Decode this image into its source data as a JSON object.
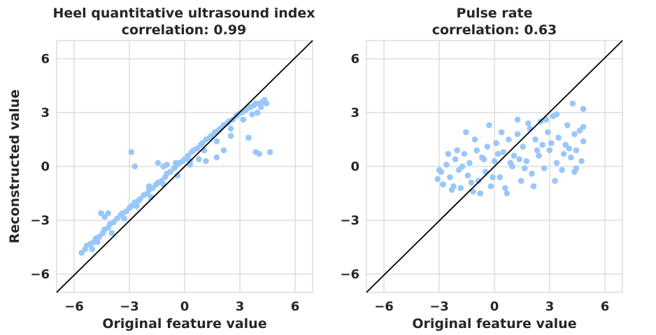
{
  "figure": {
    "ylabel": "Reconstructed value",
    "point_color": "#99c7fa",
    "identity_line_color": "#000000"
  },
  "chart_data": [
    {
      "type": "scatter",
      "title": "Heel quantitative ultrasound index",
      "subtitle": "correlation: 0.99",
      "xlabel": "Original feature value",
      "ylabel": "Reconstructed value",
      "xlim": [
        -7.2,
        7.2
      ],
      "ylim": [
        -7,
        7
      ],
      "xticks": [
        -6,
        -3,
        0,
        3,
        6
      ],
      "yticks": [
        6,
        3,
        0,
        -3,
        -6
      ],
      "xtick_labels": [
        "−6",
        "−3",
        "0",
        "3",
        "6"
      ],
      "ytick_labels": [
        "6",
        "3",
        "0",
        "−3",
        "−6"
      ],
      "grid": true,
      "reference_line": "y = x",
      "points": [
        [
          -5.8,
          -4.8
        ],
        [
          -5.6,
          -4.6
        ],
        [
          -5.5,
          -4.4
        ],
        [
          -5.3,
          -4.3
        ],
        [
          -5.1,
          -4.2
        ],
        [
          -5.0,
          -4.0
        ],
        [
          -4.8,
          -3.9
        ],
        [
          -4.6,
          -3.7
        ],
        [
          -4.5,
          -3.5
        ],
        [
          -4.3,
          -3.4
        ],
        [
          -4.2,
          -3.2
        ],
        [
          -4.0,
          -3.1
        ],
        [
          -3.8,
          -2.9
        ],
        [
          -3.6,
          -2.7
        ],
        [
          -3.5,
          -2.6
        ],
        [
          -3.3,
          -2.5
        ],
        [
          -3.1,
          -2.3
        ],
        [
          -3.0,
          -2.2
        ],
        [
          -2.8,
          -2.0
        ],
        [
          -2.6,
          -1.9
        ],
        [
          -2.5,
          -1.8
        ],
        [
          -2.3,
          -1.6
        ],
        [
          -2.1,
          -1.5
        ],
        [
          -2.0,
          -1.3
        ],
        [
          -1.8,
          -1.2
        ],
        [
          -1.6,
          -1.0
        ],
        [
          -1.5,
          -0.9
        ],
        [
          -1.3,
          -0.8
        ],
        [
          -1.1,
          -0.6
        ],
        [
          -1.0,
          -0.4
        ],
        [
          -0.8,
          -0.3
        ],
        [
          -0.6,
          -0.1
        ],
        [
          -0.5,
          0.0
        ],
        [
          -0.3,
          0.2
        ],
        [
          -0.1,
          0.3
        ],
        [
          0.0,
          0.4
        ],
        [
          0.2,
          0.6
        ],
        [
          0.4,
          0.8
        ],
        [
          0.5,
          0.9
        ],
        [
          0.7,
          1.0
        ],
        [
          0.9,
          1.2
        ],
        [
          1.0,
          1.3
        ],
        [
          1.2,
          1.5
        ],
        [
          1.4,
          1.6
        ],
        [
          1.5,
          1.7
        ],
        [
          1.7,
          1.9
        ],
        [
          1.9,
          2.0
        ],
        [
          2.0,
          2.1
        ],
        [
          2.2,
          2.3
        ],
        [
          2.4,
          2.4
        ],
        [
          2.5,
          2.5
        ],
        [
          2.7,
          2.6
        ],
        [
          2.9,
          2.8
        ],
        [
          3.0,
          2.9
        ],
        [
          3.2,
          3.0
        ],
        [
          3.4,
          3.1
        ],
        [
          3.5,
          3.2
        ],
        [
          3.7,
          3.3
        ],
        [
          3.9,
          3.4
        ],
        [
          4.0,
          3.5
        ],
        [
          4.2,
          3.5
        ],
        [
          4.4,
          3.6
        ],
        [
          4.5,
          3.7
        ],
        [
          4.6,
          3.5
        ],
        [
          4.3,
          3.3
        ],
        [
          -4.7,
          -2.6
        ],
        [
          -4.5,
          -2.8
        ],
        [
          -4.3,
          -2.6
        ],
        [
          -3.0,
          0.8
        ],
        [
          -2.8,
          0.0
        ],
        [
          -2.0,
          -1.1
        ],
        [
          -1.5,
          0.2
        ],
        [
          -1.2,
          0.0
        ],
        [
          -1.0,
          0.1
        ],
        [
          -0.5,
          0.2
        ],
        [
          0.3,
          0.1
        ],
        [
          0.8,
          0.4
        ],
        [
          1.2,
          0.3
        ],
        [
          1.8,
          0.5
        ],
        [
          2.2,
          0.9
        ],
        [
          2.6,
          1.7
        ],
        [
          3.6,
          1.6
        ],
        [
          4.0,
          0.8
        ],
        [
          4.2,
          0.7
        ],
        [
          4.8,
          0.8
        ],
        [
          -5.2,
          -4.6
        ],
        [
          -4.9,
          -4.2
        ],
        [
          -4.1,
          -3.7
        ],
        [
          -3.4,
          -2.9
        ],
        [
          -2.7,
          -2.2
        ],
        [
          -1.9,
          -1.7
        ],
        [
          -1.2,
          -1.0
        ],
        [
          -0.4,
          -0.5
        ],
        [
          0.3,
          0.3
        ],
        [
          1.1,
          0.9
        ],
        [
          1.8,
          1.4
        ],
        [
          2.6,
          2.1
        ],
        [
          3.3,
          2.6
        ],
        [
          3.8,
          2.9
        ],
        [
          4.1,
          3.0
        ]
      ]
    },
    {
      "type": "scatter",
      "title": "Pulse rate",
      "subtitle": "correlation: 0.63",
      "xlabel": "Original feature value",
      "ylabel": "",
      "xlim": [
        -7.2,
        7.2
      ],
      "ylim": [
        -7,
        7
      ],
      "xticks": [
        -6,
        -3,
        0,
        3,
        6
      ],
      "yticks": [
        6,
        3,
        0,
        -3,
        -6
      ],
      "xtick_labels": [
        "−6",
        "−3",
        "0",
        "3",
        "6"
      ],
      "ytick_labels": [
        "6",
        "3",
        "0",
        "−3",
        "−6"
      ],
      "grid": true,
      "reference_line": "y = x",
      "points": [
        [
          -3.2,
          -0.7
        ],
        [
          -3.0,
          -0.3
        ],
        [
          -2.9,
          -1.0
        ],
        [
          -2.7,
          0.1
        ],
        [
          -2.5,
          -0.6
        ],
        [
          -2.4,
          -1.3
        ],
        [
          -2.2,
          0.4
        ],
        [
          -2.0,
          -0.2
        ],
        [
          -1.9,
          -1.2
        ],
        [
          -1.7,
          0.7
        ],
        [
          -1.5,
          -0.5
        ],
        [
          -1.4,
          0.2
        ],
        [
          -1.2,
          -1.4
        ],
        [
          -1.0,
          0.9
        ],
        [
          -0.9,
          -0.8
        ],
        [
          -0.7,
          0.5
        ],
        [
          -0.5,
          -0.3
        ],
        [
          -0.4,
          1.1
        ],
        [
          -0.2,
          -1.1
        ],
        [
          0.0,
          0.3
        ],
        [
          0.1,
          1.3
        ],
        [
          0.3,
          -0.6
        ],
        [
          0.5,
          0.8
        ],
        [
          0.6,
          -1.2
        ],
        [
          0.8,
          1.5
        ],
        [
          1.0,
          0.0
        ],
        [
          1.1,
          0.6
        ],
        [
          1.3,
          1.8
        ],
        [
          1.5,
          -0.8
        ],
        [
          1.6,
          1.1
        ],
        [
          1.8,
          0.3
        ],
        [
          2.0,
          2.1
        ],
        [
          2.1,
          -0.4
        ],
        [
          2.3,
          1.5
        ],
        [
          2.5,
          0.6
        ],
        [
          2.6,
          2.5
        ],
        [
          2.8,
          -0.1
        ],
        [
          3.0,
          1.9
        ],
        [
          3.1,
          0.9
        ],
        [
          3.3,
          2.8
        ],
        [
          3.5,
          0.2
        ],
        [
          3.6,
          1.6
        ],
        [
          3.8,
          -0.2
        ],
        [
          4.0,
          1.2
        ],
        [
          4.1,
          2.3
        ],
        [
          4.3,
          0.5
        ],
        [
          4.5,
          1.8
        ],
        [
          4.6,
          0.9
        ],
        [
          4.8,
          2.0
        ],
        [
          5.0,
          1.4
        ],
        [
          5.0,
          2.2
        ],
        [
          4.4,
          3.5
        ],
        [
          5.0,
          3.2
        ],
        [
          3.5,
          2.9
        ],
        [
          4.6,
          -0.1
        ],
        [
          4.9,
          0.3
        ],
        [
          4.5,
          -0.3
        ],
        [
          -1.6,
          1.9
        ],
        [
          -0.3,
          2.3
        ],
        [
          1.3,
          2.6
        ],
        [
          -2.6,
          0.7
        ],
        [
          -1.1,
          1.5
        ],
        [
          0.4,
          1.9
        ],
        [
          1.9,
          2.4
        ],
        [
          2.9,
          2.6
        ],
        [
          -2.3,
          -1.1
        ],
        [
          -0.8,
          -1.5
        ],
        [
          0.7,
          -1.5
        ],
        [
          2.2,
          -1.1
        ],
        [
          3.4,
          -0.8
        ],
        [
          -3.1,
          -0.2
        ],
        [
          -1.8,
          0.0
        ],
        [
          -0.6,
          0.4
        ],
        [
          0.9,
          0.2
        ],
        [
          2.4,
          0.9
        ],
        [
          3.9,
          0.7
        ],
        [
          -2.1,
          0.9
        ],
        [
          -0.1,
          -0.6
        ],
        [
          1.7,
          -0.1
        ],
        [
          3.2,
          1.3
        ],
        [
          -1.3,
          -0.9
        ],
        [
          0.2,
          0.7
        ],
        [
          1.4,
          0.4
        ],
        [
          2.7,
          1.2
        ],
        [
          4.2,
          1.0
        ]
      ]
    }
  ]
}
